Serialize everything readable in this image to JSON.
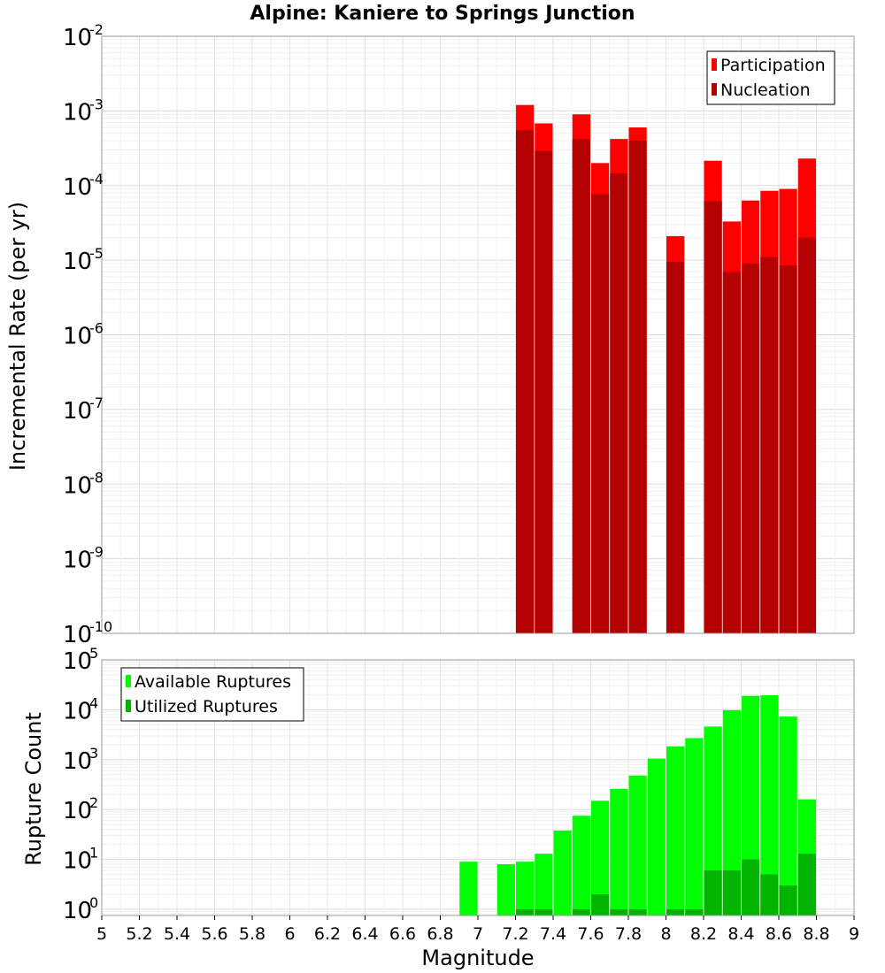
{
  "title": "Alpine: Kaniere to Springs Junction",
  "chart_data": [
    {
      "type": "bar",
      "scale": "log",
      "ylabel": "Incremental Rate (per yr)",
      "ylim": [
        1e-10,
        0.01
      ],
      "xlim": [
        5,
        9
      ],
      "y_ticks": [
        {
          "base": "10",
          "exp": "-2"
        },
        {
          "base": "10",
          "exp": "-3"
        },
        {
          "base": "10",
          "exp": "-4"
        },
        {
          "base": "10",
          "exp": "-5"
        },
        {
          "base": "10",
          "exp": "-6"
        },
        {
          "base": "10",
          "exp": "-7"
        },
        {
          "base": "10",
          "exp": "-8"
        },
        {
          "base": "10",
          "exp": "-9"
        },
        {
          "base": "10",
          "exp": "-10"
        }
      ],
      "legend": {
        "position": "top-right",
        "entries": [
          "Participation",
          "Nucleation"
        ]
      },
      "series": [
        {
          "name": "Participation",
          "color": "#ff0000",
          "points": [
            {
              "x": 7.25,
              "y": 0.0012
            },
            {
              "x": 7.35,
              "y": 0.00068
            },
            {
              "x": 7.55,
              "y": 0.0009
            },
            {
              "x": 7.65,
              "y": 0.0002
            },
            {
              "x": 7.75,
              "y": 0.00042
            },
            {
              "x": 7.85,
              "y": 0.0006
            },
            {
              "x": 8.05,
              "y": 2.1e-05
            },
            {
              "x": 8.25,
              "y": 0.000215
            },
            {
              "x": 8.35,
              "y": 3.3e-05
            },
            {
              "x": 8.45,
              "y": 6.3e-05
            },
            {
              "x": 8.55,
              "y": 8.5e-05
            },
            {
              "x": 8.65,
              "y": 9e-05
            },
            {
              "x": 8.75,
              "y": 0.00023
            }
          ]
        },
        {
          "name": "Nucleation",
          "color": "#b40000",
          "points": [
            {
              "x": 7.25,
              "y": 0.00055
            },
            {
              "x": 7.35,
              "y": 0.00029
            },
            {
              "x": 7.55,
              "y": 0.00042
            },
            {
              "x": 7.65,
              "y": 7.7e-05
            },
            {
              "x": 7.75,
              "y": 0.000145
            },
            {
              "x": 7.85,
              "y": 0.0004
            },
            {
              "x": 8.05,
              "y": 9.5e-06
            },
            {
              "x": 8.25,
              "y": 6.2e-05
            },
            {
              "x": 8.35,
              "y": 7e-06
            },
            {
              "x": 8.45,
              "y": 9e-06
            },
            {
              "x": 8.55,
              "y": 1.1e-05
            },
            {
              "x": 8.65,
              "y": 8.5e-06
            },
            {
              "x": 8.75,
              "y": 2e-05
            }
          ]
        }
      ]
    },
    {
      "type": "bar",
      "scale": "log",
      "ylabel": "Rupture Count",
      "xlabel": "Magnitude",
      "ylim": [
        0.75,
        100000.0
      ],
      "xlim": [
        5,
        9
      ],
      "y_ticks": [
        {
          "base": "10",
          "exp": "5",
          "value": 100000.0
        },
        {
          "base": "10",
          "exp": "4",
          "value": 10000.0
        },
        {
          "base": "10",
          "exp": "3",
          "value": 1000.0
        },
        {
          "base": "10",
          "exp": "2",
          "value": 100.0
        },
        {
          "base": "10",
          "exp": "1",
          "value": 10.0
        },
        {
          "base": "10",
          "exp": "0",
          "value": 1
        }
      ],
      "x_ticks": [
        "5",
        "5.2",
        "5.4",
        "5.6",
        "5.8",
        "6",
        "6.2",
        "6.4",
        "6.6",
        "6.8",
        "7",
        "7.2",
        "7.4",
        "7.6",
        "7.8",
        "8",
        "8.2",
        "8.4",
        "8.6",
        "8.8",
        "9"
      ],
      "legend": {
        "position": "top-left",
        "entries": [
          "Available Ruptures",
          "Utilized Ruptures"
        ]
      },
      "series": [
        {
          "name": "Available Ruptures",
          "color": "#00ff00",
          "points": [
            {
              "x": 6.95,
              "y": 9
            },
            {
              "x": 7.15,
              "y": 8
            },
            {
              "x": 7.25,
              "y": 9
            },
            {
              "x": 7.35,
              "y": 13
            },
            {
              "x": 7.45,
              "y": 38
            },
            {
              "x": 7.55,
              "y": 75
            },
            {
              "x": 7.65,
              "y": 150
            },
            {
              "x": 7.75,
              "y": 260
            },
            {
              "x": 7.85,
              "y": 480
            },
            {
              "x": 7.95,
              "y": 1050
            },
            {
              "x": 8.05,
              "y": 1850
            },
            {
              "x": 8.15,
              "y": 2700
            },
            {
              "x": 8.25,
              "y": 4600
            },
            {
              "x": 8.35,
              "y": 9800
            },
            {
              "x": 8.45,
              "y": 19000
            },
            {
              "x": 8.55,
              "y": 19500
            },
            {
              "x": 8.65,
              "y": 7300
            },
            {
              "x": 8.75,
              "y": 160
            }
          ]
        },
        {
          "name": "Utilized Ruptures",
          "color": "#00b400",
          "points": [
            {
              "x": 7.25,
              "y": 1
            },
            {
              "x": 7.35,
              "y": 1
            },
            {
              "x": 7.55,
              "y": 1
            },
            {
              "x": 7.65,
              "y": 2
            },
            {
              "x": 7.75,
              "y": 1
            },
            {
              "x": 7.85,
              "y": 1
            },
            {
              "x": 8.05,
              "y": 1
            },
            {
              "x": 8.15,
              "y": 1
            },
            {
              "x": 8.25,
              "y": 6
            },
            {
              "x": 8.35,
              "y": 6
            },
            {
              "x": 8.45,
              "y": 10
            },
            {
              "x": 8.55,
              "y": 5
            },
            {
              "x": 8.65,
              "y": 3
            },
            {
              "x": 8.75,
              "y": 13
            }
          ]
        }
      ]
    }
  ]
}
